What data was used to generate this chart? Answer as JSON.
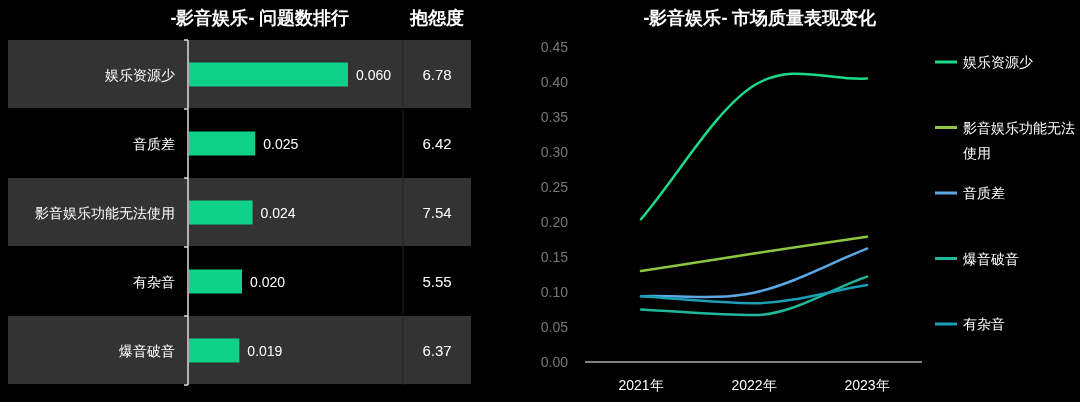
{
  "chart_data": [
    {
      "type": "bar",
      "orientation": "horizontal",
      "title": "-影音娱乐- 问题数排行",
      "categories": [
        "娱乐资源少",
        "音质差",
        "影音娱乐功能无法使用",
        "有杂音",
        "爆音破音"
      ],
      "values": [
        0.06,
        0.025,
        0.024,
        0.02,
        0.019
      ],
      "value_labels": [
        "0.060",
        "0.025",
        "0.024",
        "0.020",
        "0.019"
      ],
      "color": "#0fd18a"
    },
    {
      "type": "other",
      "title": "抱怨度",
      "annotations": [
        "6.78",
        "6.42",
        "7.54",
        "5.55",
        "6.37"
      ]
    },
    {
      "type": "line",
      "title": "-影音娱乐- 市场质量表现变化",
      "categories": [
        "2021年",
        "2022年",
        "2023年"
      ],
      "ylim": [
        0,
        0.45
      ],
      "yticks": [
        {
          "value": 0,
          "label": "0.00"
        },
        {
          "value": 0.05,
          "label": "0.05"
        },
        {
          "value": 0.1,
          "label": "0.10"
        },
        {
          "value": 0.15,
          "label": "0.15"
        },
        {
          "value": 0.2,
          "label": "0.20"
        },
        {
          "value": 0.25,
          "label": "0.25"
        },
        {
          "value": 0.3,
          "label": "0.30"
        },
        {
          "value": 0.35,
          "label": "0.35"
        },
        {
          "value": 0.4,
          "label": "0.40"
        },
        {
          "value": 0.45,
          "label": "0.45"
        }
      ],
      "legend": "right",
      "grid": false,
      "marker": "none",
      "series": [
        {
          "name": "娱乐资源少",
          "color": "#1ed98a",
          "values": [
            0.204,
            0.395,
            0.405
          ]
        },
        {
          "name": "影音娱乐功能无法使用",
          "color": "#8dc63f",
          "values": [
            0.13,
            0.155,
            0.179
          ]
        },
        {
          "name": "音质差",
          "color": "#5aa9e6",
          "values": [
            0.094,
            0.099,
            0.162
          ]
        },
        {
          "name": "爆音破音",
          "color": "#1fb89a",
          "values": [
            0.075,
            0.067,
            0.122
          ]
        },
        {
          "name": "有杂音",
          "color": "#1a9fb5",
          "values": [
            0.094,
            0.084,
            0.11
          ]
        }
      ]
    }
  ]
}
